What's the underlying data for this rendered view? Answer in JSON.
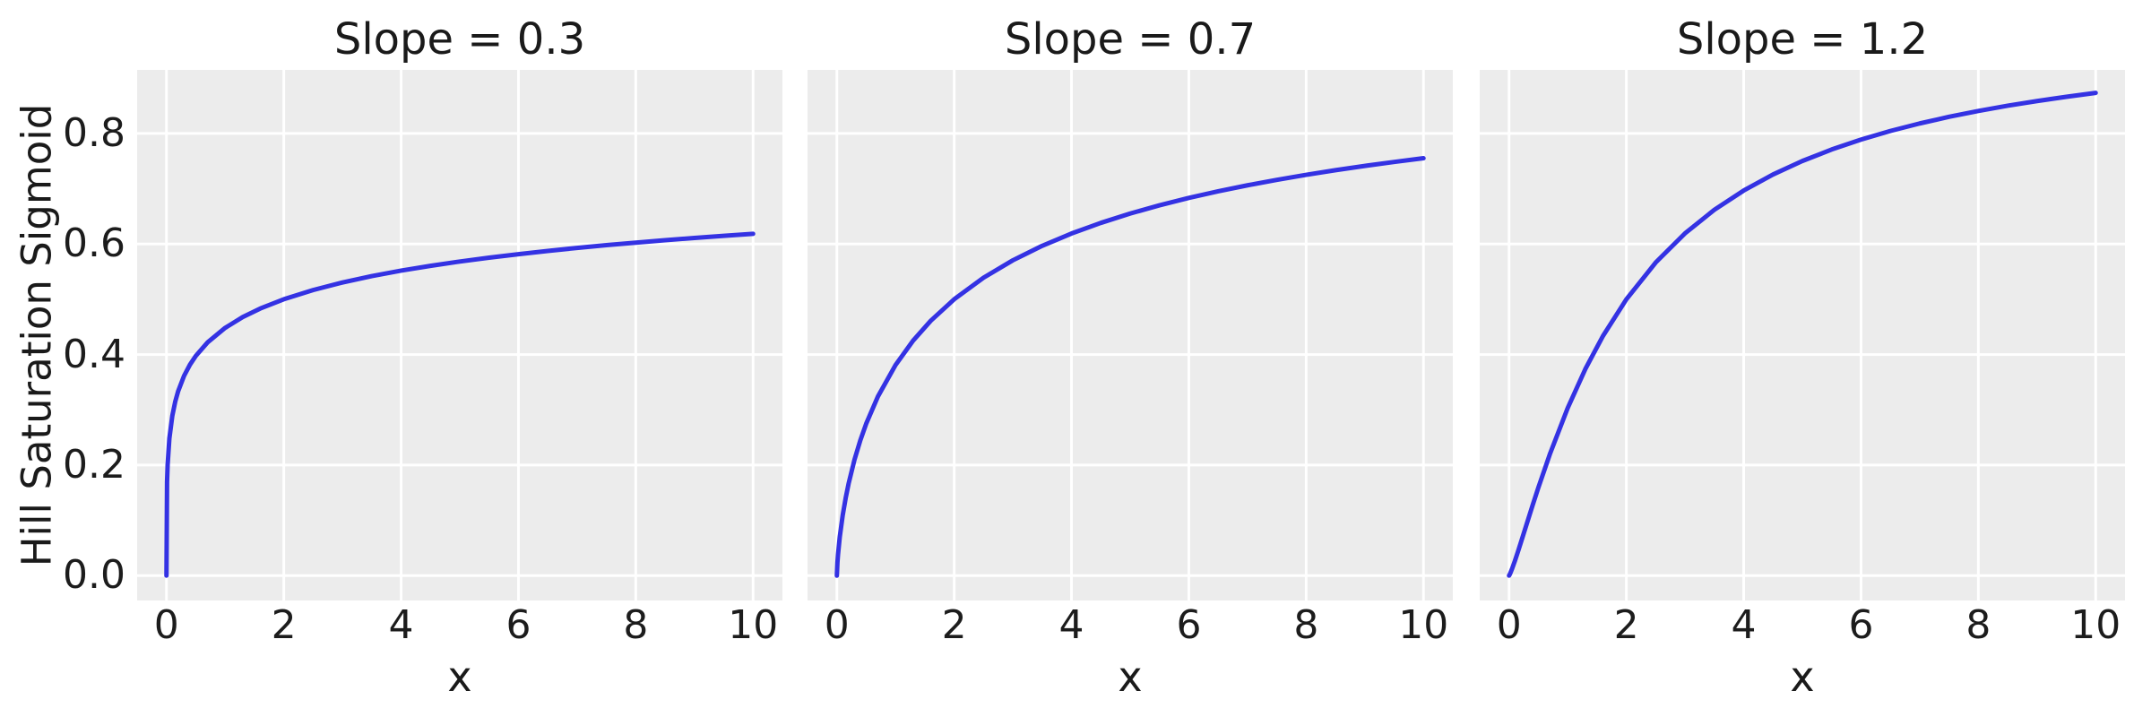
{
  "chart_data": {
    "type": "line",
    "figure_kind": "faceted-line-chart",
    "formula": "y = x^s / (x^s + 2^s)  (Hill saturation, half-saturation K = 2)",
    "xlabel": "x",
    "ylabel": "Hill Saturation Sigmoid",
    "xlim": [
      -0.5,
      10.5
    ],
    "ylim": [
      -0.045,
      0.915
    ],
    "xticks": [
      0,
      2,
      4,
      6,
      8,
      10
    ],
    "ytick_labels": [
      "0.0",
      "0.2",
      "0.4",
      "0.6",
      "0.8"
    ],
    "ytick_values": [
      0.0,
      0.2,
      0.4,
      0.6,
      0.8
    ],
    "grid": true,
    "legend": "none",
    "x": [
      0,
      0.01,
      0.02,
      0.05,
      0.1,
      0.15,
      0.2,
      0.3,
      0.4,
      0.5,
      0.7,
      1,
      1.3,
      1.6,
      2,
      2.5,
      3,
      3.5,
      4,
      4.5,
      5,
      5.5,
      6,
      6.5,
      7,
      7.5,
      8,
      8.5,
      9,
      9.5,
      10
    ],
    "facets": [
      {
        "title": "Slope = 0.3",
        "slope": 0.3,
        "y": [
          0,
          0.1695,
          0.2008,
          0.2485,
          0.2893,
          0.315,
          0.3339,
          0.3614,
          0.3816,
          0.3975,
          0.4219,
          0.4482,
          0.4678,
          0.4833,
          0.5,
          0.5167,
          0.5304,
          0.5419,
          0.5518,
          0.5605,
          0.5683,
          0.5753,
          0.5816,
          0.5875,
          0.5929,
          0.5979,
          0.6025,
          0.6069,
          0.611,
          0.6148,
          0.6184
        ]
      },
      {
        "title": "Slope = 0.7",
        "slope": 0.7,
        "y": [
          0,
          0.0239,
          0.0383,
          0.0703,
          0.1094,
          0.1402,
          0.1663,
          0.2095,
          0.2448,
          0.2748,
          0.3241,
          0.381,
          0.4252,
          0.461,
          0.5,
          0.539,
          0.5705,
          0.5967,
          0.619,
          0.6382,
          0.6551,
          0.67,
          0.6834,
          0.6953,
          0.7062,
          0.7161,
          0.7252,
          0.7336,
          0.7413,
          0.7485,
          0.7552
        ]
      },
      {
        "title": "Slope = 1.2",
        "slope": 1.2,
        "y": [
          0,
          0.0017,
          0.004,
          0.0118,
          0.0267,
          0.0428,
          0.0594,
          0.0931,
          0.1266,
          0.1593,
          0.221,
          0.3033,
          0.3736,
          0.4334,
          0.5,
          0.5665,
          0.6193,
          0.6619,
          0.6967,
          0.7258,
          0.7502,
          0.771,
          0.7889,
          0.8045,
          0.8181,
          0.8301,
          0.8407,
          0.8502,
          0.8587,
          0.8664,
          0.8734
        ]
      }
    ],
    "style": {
      "figure_bg": "#ffffff",
      "panel_bg": "#ececec",
      "grid_color": "#ffffff",
      "line_color": "#3432e3",
      "text_color": "#1a1a1a"
    }
  }
}
